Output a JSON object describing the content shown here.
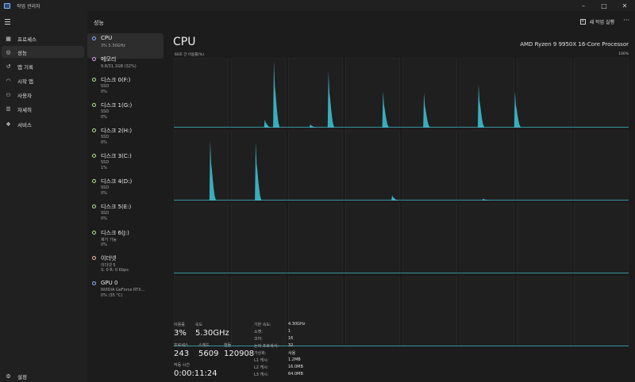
{
  "window": {
    "title": "작업 관리자",
    "controls": [
      "–",
      "□",
      "✕"
    ]
  },
  "nav": {
    "items": [
      {
        "label": "프로세스",
        "icon": "processes-grid-icon",
        "glyph": "▦"
      },
      {
        "label": "성능",
        "icon": "performance-chart-icon",
        "glyph": "◎"
      },
      {
        "label": "앱 기록",
        "icon": "history-clock-icon",
        "glyph": "↺"
      },
      {
        "label": "시작 앱",
        "icon": "startup-speedometer-icon",
        "glyph": "◠"
      },
      {
        "label": "사용자",
        "icon": "users-icon",
        "glyph": "⚇"
      },
      {
        "label": "자세히",
        "icon": "details-list-icon",
        "glyph": "☰"
      },
      {
        "label": "서비스",
        "icon": "services-icon",
        "glyph": "❖"
      }
    ],
    "settings_label": "설정"
  },
  "header": {
    "title": "성능",
    "new_task_label": "새 작업 실행",
    "more": "···"
  },
  "resources": [
    {
      "name": "CPU",
      "lines": [
        "3% 5.30GHz"
      ],
      "dot": "#8ab4f8",
      "active": true
    },
    {
      "name": "메모리",
      "lines": [
        "9.8/31.1GB (32%)"
      ],
      "dot": "#d2a8f0"
    },
    {
      "name": "디스크 0(F:)",
      "lines": [
        "SSD",
        "0%"
      ],
      "dot": "#b5e58c"
    },
    {
      "name": "디스크 1(G:)",
      "lines": [
        "SSD",
        "0%"
      ],
      "dot": "#b5e58c"
    },
    {
      "name": "디스크 2(H:)",
      "lines": [
        "SSD",
        "0%"
      ],
      "dot": "#b5e58c"
    },
    {
      "name": "디스크 3(C:)",
      "lines": [
        "SSD",
        "1%"
      ],
      "dot": "#b5e58c"
    },
    {
      "name": "디스크 4(D:)",
      "lines": [
        "SSD",
        "0%"
      ],
      "dot": "#b5e58c"
    },
    {
      "name": "디스크 5(E:)",
      "lines": [
        "SSD",
        "0%"
      ],
      "dot": "#b5e58c"
    },
    {
      "name": "디스크 6(J:)",
      "lines": [
        "제거 가능",
        "0%"
      ],
      "dot": "#b5e58c"
    },
    {
      "name": "이더넷",
      "lines": [
        "이더넷 5",
        "S: 0 R: 0 Kbps"
      ],
      "dot": "#f0b8a0"
    },
    {
      "name": "GPU 0",
      "lines": [
        "NVIDIA GeForce RTX...",
        "0% (35 °C)"
      ],
      "dot": "#8ab4f8"
    }
  ],
  "cpu": {
    "title": "CPU",
    "model": "AMD Ryzen 9 9950X 16-Core Processor",
    "graph_caption": "60초 간 이용률(%)",
    "graph_max": "100%",
    "graph_color": "#3fc7d9",
    "stats": {
      "utilization_label": "이용률",
      "utilization": "3%",
      "speed_label": "속도",
      "speed": "5.30GHz",
      "processes_label": "프로세스",
      "processes": "243",
      "threads_label": "스레드",
      "threads": "5609",
      "handles_label": "핸들",
      "handles": "120908",
      "uptime_label": "작동 시간",
      "uptime": "0:00:11:24"
    },
    "details": [
      {
        "label": "기본 속도:",
        "value": "4.30GHz"
      },
      {
        "label": "소켓:",
        "value": "1"
      },
      {
        "label": "코어:",
        "value": "16"
      },
      {
        "label": "논리 프로세서:",
        "value": "32"
      },
      {
        "label": "가상화:",
        "value": "사용"
      },
      {
        "label": "L1 캐시:",
        "value": "1.2MB"
      },
      {
        "label": "L2 캐시:",
        "value": "16.0MB"
      },
      {
        "label": "L3 캐시:",
        "value": "64.0MB"
      }
    ],
    "chart_data": {
      "type": "area",
      "rows": 4,
      "cols": 8,
      "ylim": [
        0,
        100
      ],
      "spikes": [
        {
          "row": 0,
          "time": 30,
          "value": 5
        },
        {
          "row": 0,
          "time": 20,
          "value": 12
        },
        {
          "row": 0,
          "time": 22,
          "value": 100
        },
        {
          "row": 0,
          "time": 34,
          "value": 85
        },
        {
          "row": 0,
          "time": 46,
          "value": 55
        },
        {
          "row": 0,
          "time": 55,
          "value": 52
        },
        {
          "row": 0,
          "time": 67,
          "value": 65
        },
        {
          "row": 0,
          "time": 75,
          "value": 55
        },
        {
          "row": 1,
          "time": 8,
          "value": 90
        },
        {
          "row": 1,
          "time": 18,
          "value": 88
        },
        {
          "row": 1,
          "time": 48,
          "value": 8
        },
        {
          "row": 1,
          "time": 68,
          "value": 3
        }
      ]
    }
  }
}
